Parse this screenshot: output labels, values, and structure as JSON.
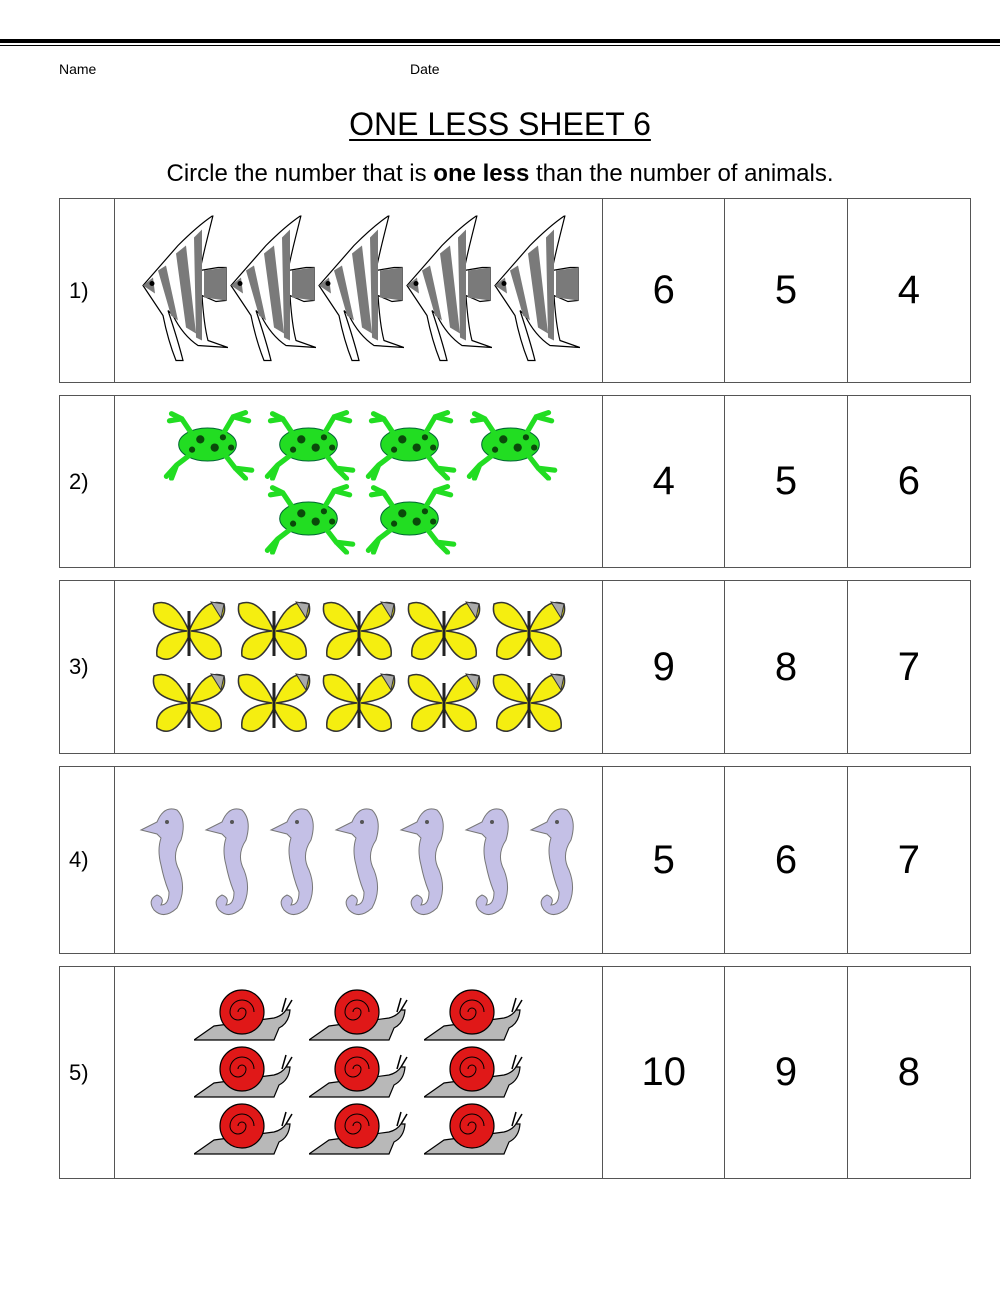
{
  "header": {
    "name_label": "Name",
    "date_label": "Date"
  },
  "title": "ONE LESS SHEET 6",
  "instructions": {
    "before": "Circle the number that is ",
    "bold": "one less",
    "after": " than the number of animals."
  },
  "problems": [
    {
      "label": "1)",
      "animal": "angelfish",
      "count": 5,
      "rows": [
        5
      ],
      "choices": [
        "6",
        "5",
        "4"
      ]
    },
    {
      "label": "2)",
      "animal": "frog",
      "count": 6,
      "rows": [
        4,
        2
      ],
      "choices": [
        "4",
        "5",
        "6"
      ]
    },
    {
      "label": "3)",
      "animal": "butterfly",
      "count": 10,
      "rows": [
        5,
        5
      ],
      "choices": [
        "9",
        "8",
        "7"
      ]
    },
    {
      "label": "4)",
      "animal": "seahorse",
      "count": 7,
      "rows": [
        7
      ],
      "choices": [
        "5",
        "6",
        "7"
      ]
    },
    {
      "label": "5)",
      "animal": "snail",
      "count": 9,
      "rows": [
        3,
        3,
        3
      ],
      "choices": [
        "10",
        "9",
        "8"
      ]
    }
  ],
  "colors": {
    "fish": "#7a7a7a",
    "frog": "#22dd22",
    "butterfly": "#f5ee10",
    "seahorse": "#c4c0e6",
    "snail_shell": "#e01818",
    "snail_body": "#b8b8b8"
  }
}
